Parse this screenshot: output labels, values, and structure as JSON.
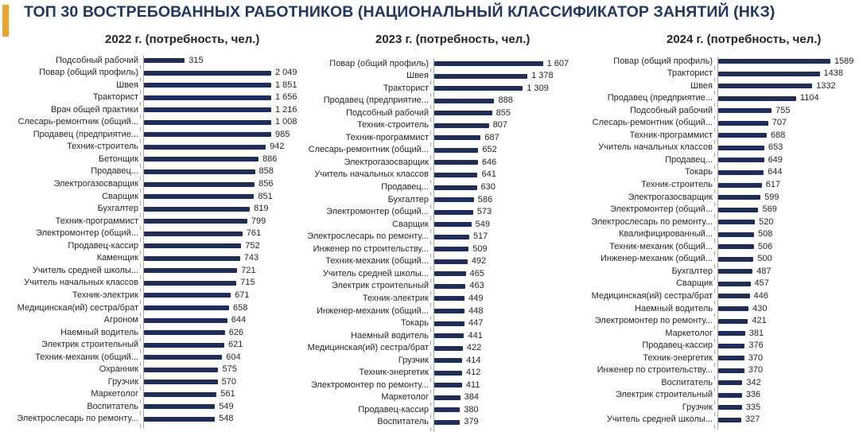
{
  "header": {
    "title": "ТОП 30 ВОСТРЕБОВАННЫХ РАБОТНИКОВ (НАЦИОНАЛЬНЫЙ КЛАССИФИКАТОР ЗАНЯТИЙ (НКЗ)",
    "accent_color": "#f0a32c",
    "title_color": "#1f3864"
  },
  "chart_data": [
    {
      "type": "bar",
      "orientation": "horizontal",
      "title": "2022 г. (потребность, чел.)",
      "bar_color": "#1f2d5c",
      "grid": false,
      "categories": [
        "Подсобный рабочий",
        "Повар (общий профиль)",
        "Швея",
        "Тракторист",
        "Врач общей практики",
        "Слесарь-ремонтник (общий...",
        "Продавец (предприятие...",
        "Техник-строитель",
        "Бетонщик",
        "Продавец...",
        "Электрогазосварщик",
        "Сварщик",
        "Бухгалтер",
        "Техник-программист",
        "Электромонтер (общий...",
        "Продавец-кассир",
        "Каменщик",
        "Учитель средней школы...",
        "Учитель начальных классов",
        "Техник-электрик",
        "Медицинская(ий) сестра/брат",
        "Агроном",
        "Наемный водитель",
        "Электрик строительный",
        "Техник-механик (общий...",
        "Охранник",
        "Грузчик",
        "Маркетолог",
        "Воспитатель",
        "Электрослесарь по ремонту..."
      ],
      "values": [
        315,
        2049,
        1851,
        1656,
        1216,
        1008,
        985,
        942,
        886,
        858,
        856,
        851,
        819,
        799,
        761,
        752,
        743,
        721,
        715,
        671,
        658,
        644,
        626,
        621,
        604,
        575,
        570,
        561,
        549,
        548
      ],
      "value_labels": [
        "315",
        "2 049",
        "1 851",
        "1 656",
        "1 216",
        "1 008",
        "985",
        "942",
        "886",
        "858",
        "856",
        "851",
        "819",
        "799",
        "761",
        "752",
        "743",
        "721",
        "715",
        "671",
        "658",
        "644",
        "626",
        "621",
        "604",
        "575",
        "570",
        "561",
        "549",
        "548"
      ],
      "note": "first bar truncated at chart edge"
    },
    {
      "type": "bar",
      "orientation": "horizontal",
      "title": "2023 г. (потребность, чел.)",
      "bar_color": "#1f2d5c",
      "grid": false,
      "categories": [
        "Повар (общий профиль)",
        "Швея",
        "Тракторист",
        "Продавец (предприятие...",
        "Подсобный рабочий",
        "Техник-строитель",
        "Техник-программист",
        "Слесарь-ремонтник (общий...",
        "Электрогазосварщик",
        "Учитель начальных классов",
        "Продавец...",
        "Бухгалтер",
        "Электромонтер (общий...",
        "Сварщик",
        "Электрослесарь по ремонту...",
        "Инженер по строительству...",
        "Техник-механик (общий...",
        "Учитель средней школы...",
        "Электрик строительный",
        "Техник-электрик",
        "Инженер-механик (общий...",
        "Токарь",
        "Наемный водитель",
        "Медицинская(ий) сестра/брат",
        "Грузчик",
        "Техник-энергетик",
        "Электромонтер по ремонту...",
        "Маркетолог",
        "Продавец-кассир",
        "Воспитатель"
      ],
      "values": [
        1607,
        1378,
        1309,
        888,
        855,
        807,
        687,
        652,
        646,
        641,
        630,
        586,
        573,
        549,
        517,
        509,
        492,
        465,
        463,
        449,
        448,
        447,
        441,
        422,
        414,
        412,
        411,
        384,
        380,
        379
      ],
      "value_labels": [
        "1 607",
        "1 378",
        "1 309",
        "888",
        "855",
        "807",
        "687",
        "652",
        "646",
        "641",
        "630",
        "586",
        "573",
        "549",
        "517",
        "509",
        "492",
        "465",
        "463",
        "449",
        "448",
        "447",
        "441",
        "422",
        "414",
        "412",
        "411",
        "384",
        "380",
        "379"
      ]
    },
    {
      "type": "bar",
      "orientation": "horizontal",
      "title": "2024 г. (потребность, чел.)",
      "bar_color": "#1f2d5c",
      "grid": false,
      "categories": [
        "Повар (общий профиль)",
        "Тракторист",
        "Швея",
        "Продавец (предприятие...",
        "Подсобный рабочий",
        "Слесарь-ремонтник (общий...",
        "Техник-программист",
        "Учитель начальных классов",
        "Продавец...",
        "Токарь",
        "Техник-строитель",
        "Электрогазосварщик",
        "Электромонтер (общий...",
        "Электрослесарь по ремонту...",
        "Квалифицированный...",
        "Техник-механик (общий...",
        "Инженер-механик (общий...",
        "Бухгалтер",
        "Сварщик",
        "Медицинская(ий) сестра/брат",
        "Наемный водитель",
        "Электромонтер по ремонту...",
        "Маркетолог",
        "Продавец-кассир",
        "Техник-энергетик",
        "Инженер по строительству...",
        "Воспитатель",
        "Электрик строительный",
        "Грузчик",
        "Учитель средней школы..."
      ],
      "values": [
        1589,
        1438,
        1332,
        1104,
        755,
        707,
        688,
        653,
        649,
        644,
        617,
        599,
        569,
        520,
        508,
        506,
        500,
        487,
        457,
        446,
        430,
        421,
        381,
        376,
        370,
        370,
        342,
        336,
        335,
        327
      ],
      "value_labels": [
        "1589",
        "1438",
        "1332",
        "1104",
        "755",
        "707",
        "688",
        "653",
        "649",
        "644",
        "617",
        "599",
        "569",
        "520",
        "508",
        "506",
        "500",
        "487",
        "457",
        "446",
        "430",
        "421",
        "381",
        "376",
        "370",
        "370",
        "342",
        "336",
        "335",
        "327"
      ]
    }
  ]
}
